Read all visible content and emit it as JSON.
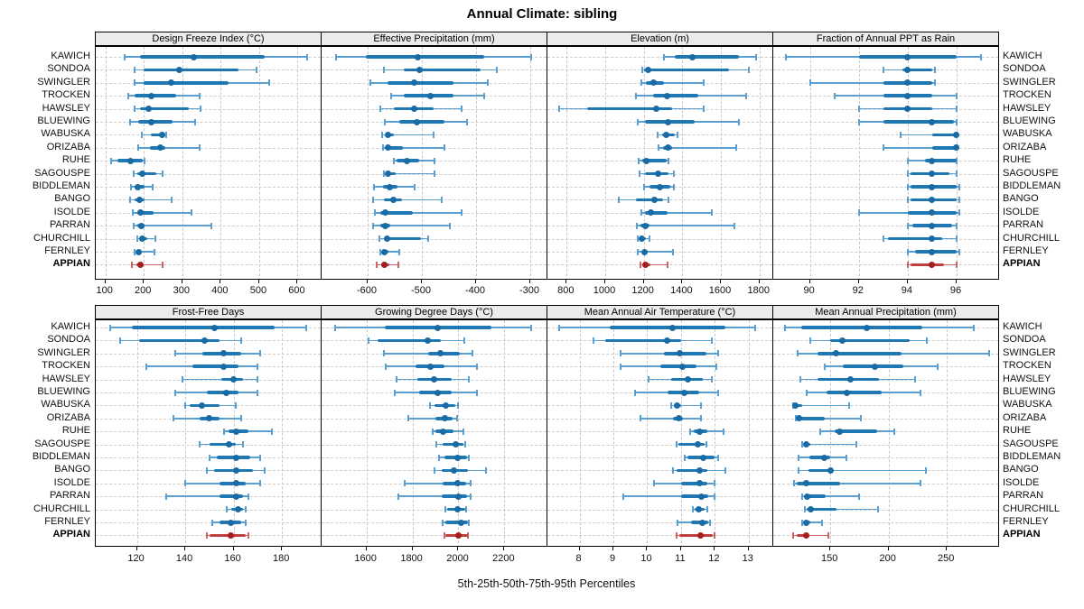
{
  "title": "Annual Climate: sibling",
  "caption": "5th-25th-50th-75th-95th Percentiles",
  "percentile_labels": [
    "5th",
    "25th",
    "50th",
    "75th",
    "95th"
  ],
  "stations": [
    "KAWICH",
    "SONDOA",
    "SWINGLER",
    "TROCKEN",
    "HAWSLEY",
    "BLUEWING",
    "WABUSKA",
    "ORIZABA",
    "RUHE",
    "SAGOUSPE",
    "BIDDLEMAN",
    "BANGO",
    "ISOLDE",
    "PARRAN",
    "CHURCHILL",
    "FERNLEY",
    "APPIAN"
  ],
  "highlight_station": "APPIAN",
  "colors": {
    "blue_box": "#1f77b4",
    "blue_whisker": "#5b9fd0",
    "blue_dot": "#1a6aa3",
    "red_box": "#bf3f3f",
    "red_whisker": "#cc6666",
    "red_dot": "#a51d1d",
    "strip_bg": "#ebebeb",
    "grid": "#cdcdcd",
    "border": "#000000"
  },
  "chart_data": {
    "type": "dotplot-percentiles",
    "panel_grid": "2 rows x 4 cols",
    "percentiles": [
      5,
      25,
      50,
      75,
      95
    ],
    "panels": [
      {
        "row": 0,
        "col": 0,
        "title": "Design Freeze Index (°C)",
        "xlim": [
          75,
          660
        ],
        "ticks": [
          100,
          200,
          300,
          400,
          500,
          600
        ],
        "values": [
          [
            150,
            190,
            330,
            515,
            625
          ],
          [
            175,
            200,
            293,
            446,
            494
          ],
          [
            175,
            200,
            270,
            420,
            525
          ],
          [
            160,
            175,
            220,
            285,
            345
          ],
          [
            177,
            190,
            212,
            316,
            348
          ],
          [
            165,
            185,
            219,
            275,
            333
          ],
          [
            194,
            218,
            247,
            254,
            258
          ],
          [
            186,
            217,
            242,
            255,
            346
          ],
          [
            115,
            131,
            165,
            197,
            201
          ],
          [
            174,
            183,
            196,
            233,
            248
          ],
          [
            166,
            177,
            184,
            201,
            222
          ],
          [
            164,
            176,
            188,
            203,
            272
          ],
          [
            172,
            182,
            191,
            225,
            325
          ],
          [
            174,
            182,
            194,
            202,
            376
          ],
          [
            184,
            190,
            195,
            209,
            231
          ],
          [
            176,
            181,
            186,
            196,
            227
          ],
          [
            170,
            180,
            191,
            198,
            248
          ]
        ]
      },
      {
        "row": 0,
        "col": 1,
        "title": "Effective Precipitation (mm)",
        "xlim": [
          -685,
          -270
        ],
        "ticks": [
          -600,
          -500,
          -400,
          -300
        ],
        "values": [
          [
            -658,
            -604,
            -508,
            -385,
            -298
          ],
          [
            -570,
            -533,
            -505,
            -391,
            -361
          ],
          [
            -595,
            -563,
            -515,
            -441,
            -379
          ],
          [
            -556,
            -533,
            -484,
            -441,
            -385
          ],
          [
            -576,
            -551,
            -514,
            -478,
            -427
          ],
          [
            -568,
            -541,
            -509,
            -458,
            -416
          ],
          [
            -574,
            -568,
            -562,
            -551,
            -478
          ],
          [
            -572,
            -566,
            -562,
            -535,
            -458
          ],
          [
            -552,
            -546,
            -527,
            -505,
            -477
          ],
          [
            -570,
            -566,
            -563,
            -549,
            -477
          ],
          [
            -589,
            -572,
            -560,
            -545,
            -514
          ],
          [
            -590,
            -570,
            -553,
            -537,
            -464
          ],
          [
            -586,
            -577,
            -567,
            -516,
            -427
          ],
          [
            -590,
            -577,
            -568,
            -559,
            -448
          ],
          [
            -578,
            -570,
            -564,
            -502,
            -488
          ],
          [
            -577,
            -573,
            -570,
            -562,
            -541
          ],
          [
            -583,
            -574,
            -570,
            -560,
            -543
          ]
        ]
      },
      {
        "row": 0,
        "col": 2,
        "title": "Elevation (m)",
        "xlim": [
          700,
          1867
        ],
        "ticks": [
          800,
          1000,
          1200,
          1400,
          1600,
          1800
        ],
        "values": [
          [
            1303,
            1360,
            1454,
            1695,
            1781
          ],
          [
            1190,
            1202,
            1223,
            1640,
            1746
          ],
          [
            1189,
            1213,
            1251,
            1306,
            1511
          ],
          [
            1158,
            1248,
            1322,
            1481,
            1731
          ],
          [
            761,
            906,
            1264,
            1345,
            1513
          ],
          [
            1171,
            1205,
            1326,
            1466,
            1695
          ],
          [
            1272,
            1295,
            1317,
            1361,
            1376
          ],
          [
            1275,
            1300,
            1326,
            1345,
            1680
          ],
          [
            1175,
            1190,
            1212,
            1320,
            1330
          ],
          [
            1177,
            1205,
            1275,
            1330,
            1356
          ],
          [
            1200,
            1229,
            1283,
            1338,
            1356
          ],
          [
            1072,
            1158,
            1256,
            1298,
            1330
          ],
          [
            1186,
            1205,
            1236,
            1322,
            1553
          ],
          [
            1166,
            1181,
            1210,
            1229,
            1670
          ],
          [
            1171,
            1180,
            1189,
            1213,
            1229
          ],
          [
            1171,
            1190,
            1202,
            1220,
            1353
          ],
          [
            1181,
            1195,
            1210,
            1234,
            1322
          ]
        ]
      },
      {
        "row": 0,
        "col": 3,
        "title": "Fraction of Annual PPT as Rain",
        "xlim": [
          88.5,
          97.7
        ],
        "ticks": [
          90,
          92,
          94,
          96
        ],
        "values": [
          [
            89,
            92,
            94,
            96,
            97
          ],
          [
            93,
            93.8,
            94,
            95,
            95.1
          ],
          [
            90,
            93,
            94,
            95,
            95.1
          ],
          [
            91,
            93,
            94,
            95,
            96
          ],
          [
            92,
            93,
            94,
            95,
            96
          ],
          [
            92,
            93,
            95,
            95.9,
            96
          ],
          [
            93.7,
            95,
            96,
            96,
            96
          ],
          [
            93,
            95,
            96,
            96,
            96
          ],
          [
            94,
            94.7,
            95,
            96,
            96
          ],
          [
            94,
            94.1,
            95,
            95.7,
            96
          ],
          [
            94,
            94.1,
            95,
            96,
            96.1
          ],
          [
            94,
            94.1,
            95,
            96,
            96.1
          ],
          [
            92,
            94,
            95,
            96,
            96.1
          ],
          [
            94,
            94.2,
            95,
            95.8,
            96
          ],
          [
            93,
            93.2,
            95,
            95.4,
            96
          ],
          [
            94,
            94.3,
            95,
            96,
            96.1
          ],
          [
            94,
            94.1,
            95,
            95.5,
            96
          ]
        ]
      },
      {
        "row": 1,
        "col": 0,
        "title": "Frost-Free Days",
        "xlim": [
          103,
          196
        ],
        "ticks": [
          120,
          140,
          160,
          180
        ],
        "values": [
          [
            109,
            118,
            152,
            177,
            190
          ],
          [
            113,
            121,
            148,
            154,
            163
          ],
          [
            136,
            147,
            156,
            163,
            171
          ],
          [
            124,
            143,
            156,
            162,
            170
          ],
          [
            139,
            155,
            160,
            164,
            170
          ],
          [
            136,
            149,
            157,
            162,
            170
          ],
          [
            140,
            142,
            147,
            154,
            161
          ],
          [
            135,
            146,
            150,
            154,
            163
          ],
          [
            156,
            158,
            161,
            166,
            176
          ],
          [
            146,
            150,
            158,
            161,
            164
          ],
          [
            150,
            153,
            161,
            167,
            171
          ],
          [
            149,
            152,
            161,
            168,
            173
          ],
          [
            140,
            154,
            161,
            165,
            171
          ],
          [
            132,
            154,
            161,
            164,
            166
          ],
          [
            157,
            159,
            162,
            164,
            165
          ],
          [
            151,
            154,
            159,
            163,
            165
          ],
          [
            149,
            150,
            159,
            165,
            166
          ]
        ]
      },
      {
        "row": 1,
        "col": 1,
        "title": "Growing Degree Days (°C)",
        "xlim": [
          1405,
          2383
        ],
        "ticks": [
          1600,
          1800,
          2000,
          2200
        ],
        "values": [
          [
            1465,
            1680,
            1910,
            2145,
            2315
          ],
          [
            1610,
            1650,
            1865,
            1924,
            2024
          ],
          [
            1675,
            1870,
            1920,
            2005,
            2060
          ],
          [
            1685,
            1815,
            1880,
            1940,
            2080
          ],
          [
            1730,
            1820,
            1895,
            1970,
            2045
          ],
          [
            1725,
            1830,
            1910,
            1970,
            2080
          ],
          [
            1878,
            1894,
            1946,
            1988,
            1998
          ],
          [
            1783,
            1900,
            1940,
            1975,
            1995
          ],
          [
            1890,
            1900,
            1933,
            1978,
            2022
          ],
          [
            1905,
            1933,
            1988,
            2020,
            2028
          ],
          [
            1917,
            1940,
            1995,
            2037,
            2047
          ],
          [
            1894,
            1926,
            1982,
            2041,
            2119
          ],
          [
            1766,
            1933,
            1995,
            2033,
            2054
          ],
          [
            1740,
            1926,
            2000,
            2037,
            2054
          ],
          [
            1942,
            1952,
            1998,
            2030,
            2035
          ],
          [
            1933,
            1943,
            2013,
            2040,
            2045
          ],
          [
            1939,
            1945,
            2000,
            2040,
            2043
          ]
        ]
      },
      {
        "row": 1,
        "col": 2,
        "title": "Mean Annual Air Temperature (°C)",
        "xlim": [
          7.05,
          13.7
        ],
        "ticks": [
          8,
          9,
          10,
          11,
          12,
          13
        ],
        "values": [
          [
            7.4,
            8.9,
            10.75,
            12.3,
            13.2
          ],
          [
            8.4,
            8.75,
            10.6,
            11.0,
            11.9
          ],
          [
            9.2,
            10.5,
            10.95,
            11.75,
            12.1
          ],
          [
            9.2,
            10.4,
            11.05,
            11.45,
            12.05
          ],
          [
            10.05,
            10.7,
            11.2,
            11.65,
            11.9
          ],
          [
            9.65,
            10.6,
            11.1,
            11.55,
            12.1
          ],
          [
            10.7,
            10.78,
            10.88,
            11.0,
            11.6
          ],
          [
            9.8,
            10.77,
            10.93,
            11.05,
            11.6
          ],
          [
            11.28,
            11.37,
            11.55,
            11.77,
            12.26
          ],
          [
            10.86,
            10.93,
            11.5,
            11.7,
            11.75
          ],
          [
            11.1,
            11.2,
            11.65,
            12.0,
            12.1
          ],
          [
            10.75,
            10.88,
            11.56,
            11.77,
            12.3
          ],
          [
            10.2,
            11.0,
            11.55,
            11.77,
            12.0
          ],
          [
            9.3,
            11.0,
            11.6,
            11.8,
            12.0
          ],
          [
            11.34,
            11.4,
            11.53,
            11.7,
            11.77
          ],
          [
            10.9,
            11.3,
            11.62,
            11.8,
            11.85
          ],
          [
            10.86,
            10.95,
            11.57,
            11.94,
            12.0
          ]
        ]
      },
      {
        "row": 1,
        "col": 3,
        "title": "Mean Annual Precipitation (mm)",
        "xlim": [
          101,
          294
        ],
        "ticks": [
          150,
          200,
          250
        ],
        "values": [
          [
            111,
            125,
            181,
            229,
            273
          ],
          [
            133,
            150,
            160,
            218,
            233
          ],
          [
            122,
            139,
            155,
            211,
            286
          ],
          [
            145,
            161,
            188,
            213,
            242
          ],
          [
            124,
            139,
            167,
            192,
            223
          ],
          [
            130,
            147,
            164,
            194,
            227
          ],
          [
            118,
            119,
            120,
            126,
            166
          ],
          [
            120,
            121,
            123,
            145,
            176
          ],
          [
            141,
            154,
            158,
            190,
            205
          ],
          [
            126,
            127,
            129,
            133,
            172
          ],
          [
            123,
            132,
            145,
            150,
            164
          ],
          [
            123,
            131,
            150,
            152,
            232
          ],
          [
            119,
            121,
            129,
            158,
            227
          ],
          [
            126,
            128,
            130,
            146,
            175
          ],
          [
            128,
            130,
            133,
            155,
            191
          ],
          [
            126,
            127,
            129,
            133,
            143
          ],
          [
            118,
            121,
            129,
            132,
            148
          ]
        ]
      }
    ]
  }
}
